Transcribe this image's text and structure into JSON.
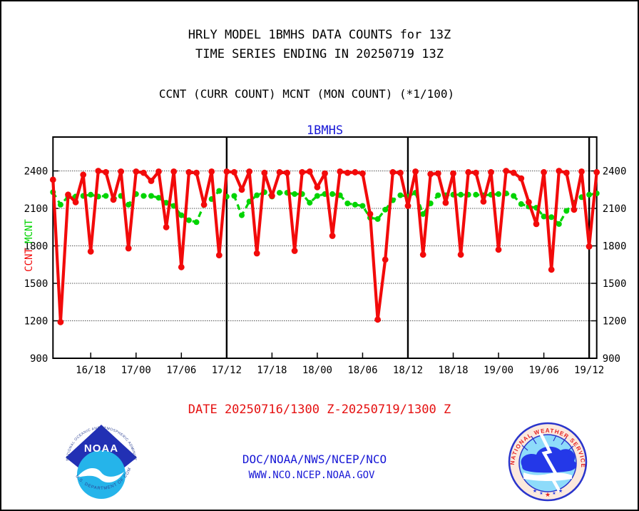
{
  "page": {
    "title_line1": "HRLY MODEL 1BMHS DATA COUNTS for 13Z",
    "title_line2": "TIME SERIES ENDING IN 20250719 13Z",
    "subtitle": "CCNT (CURR COUNT) MCNT (MON COUNT) (*1/100)",
    "date_range": "DATE 20250716/1300 Z-20250719/1300 Z",
    "org_line": "DOC/NOAA/NWS/NCEP/NCO",
    "url_line": "WWW.NCO.NCEP.NOAA.GOV",
    "colors": {
      "ccnt_red": "#f20a0a",
      "mcnt_green": "#00d400",
      "blue_text": "#1717d6",
      "black": "#000000"
    }
  },
  "chart_data": {
    "type": "line",
    "title": "1BMHS",
    "title_color": "#1717d6",
    "x_start_label": "20250716/1300Z",
    "x_end_label": "20250719/1300Z",
    "x_hours_range": [
      0,
      72
    ],
    "x_tick_hours": [
      5,
      11,
      17,
      23,
      29,
      35,
      41,
      47,
      53,
      59,
      65,
      71
    ],
    "x_tick_labels": [
      "16/18",
      "17/00",
      "17/06",
      "17/12",
      "17/18",
      "18/00",
      "18/06",
      "18/12",
      "18/18",
      "19/00",
      "19/06",
      "19/12"
    ],
    "day_line_hours": [
      23,
      47,
      71
    ],
    "y_ticks": [
      900,
      1200,
      1500,
      1800,
      2100,
      2400
    ],
    "grid_values": [
      1200,
      1500,
      1800,
      2100,
      2400
    ],
    "ylim": [
      900,
      2670
    ],
    "grid": true,
    "left_axis_labels": [
      {
        "text": "CCNT",
        "color": "#f20a0a"
      },
      {
        "text": "MCNT",
        "color": "#00d400"
      }
    ],
    "series": [
      {
        "name": "MCNT",
        "color": "#00d400",
        "style": "dashed",
        "values": [
          2230,
          2130,
          2195,
          2195,
          2200,
          2210,
          2195,
          2200,
          2175,
          2200,
          2130,
          2215,
          2200,
          2200,
          2185,
          2145,
          2120,
          2045,
          2005,
          1990,
          2130,
          2175,
          2240,
          2195,
          2200,
          2045,
          2155,
          2205,
          2230,
          2195,
          2225,
          2225,
          2215,
          2215,
          2145,
          2200,
          2215,
          2215,
          2205,
          2140,
          2130,
          2120,
          2025,
          2015,
          2090,
          2165,
          2205,
          2195,
          2225,
          2055,
          2140,
          2205,
          2205,
          2210,
          2210,
          2210,
          2210,
          2205,
          2210,
          2215,
          2220,
          2200,
          2135,
          2115,
          2105,
          2035,
          2030,
          1975,
          2080,
          2145,
          2190,
          2210,
          2220
        ]
      },
      {
        "name": "CCNT",
        "color": "#f20a0a",
        "style": "solid",
        "values": [
          2330,
          1190,
          2210,
          2150,
          2370,
          1755,
          2400,
          2390,
          2170,
          2395,
          1780,
          2395,
          2385,
          2320,
          2395,
          1950,
          2395,
          1630,
          2390,
          2385,
          2130,
          2395,
          1725,
          2395,
          2390,
          2250,
          2395,
          1740,
          2385,
          2200,
          2390,
          2385,
          1760,
          2390,
          2395,
          2270,
          2380,
          1880,
          2395,
          2385,
          2390,
          2380,
          2055,
          1210,
          1690,
          2390,
          2385,
          2120,
          2395,
          1730,
          2375,
          2380,
          2145,
          2380,
          1730,
          2390,
          2385,
          2155,
          2390,
          1770,
          2400,
          2385,
          2340,
          2150,
          1975,
          2390,
          1610,
          2400,
          2385,
          2090,
          2395,
          1795,
          2390
        ]
      }
    ]
  },
  "logos": {
    "noaa": {
      "top_text": "NATIONAL OCEANIC AND ATMOSPHERIC ADMINISTRATION",
      "bottom_text": "U.S. DEPARTMENT OF COMMERCE",
      "label": "NOAA",
      "dark_blue": "#2230b4",
      "light_blue": "#25b4ea"
    },
    "nws": {
      "ring_text": "NATIONAL WEATHER SERVICE",
      "star_char": "★",
      "ring_fill": "#fce9dd",
      "ring_border": "#2a35cc",
      "inner_blue": "#8edbfa",
      "cloud_blue": "#2438e8",
      "text_red": "#e32222"
    }
  }
}
